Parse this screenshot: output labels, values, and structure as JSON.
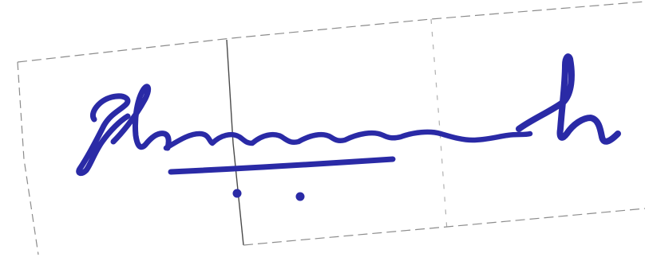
{
  "document": {
    "type": "scanned signature",
    "signature_text": "",
    "ink_color": "#2a2aa6",
    "paper_color": "#ffffff",
    "line_color": "#8c8c8c"
  }
}
